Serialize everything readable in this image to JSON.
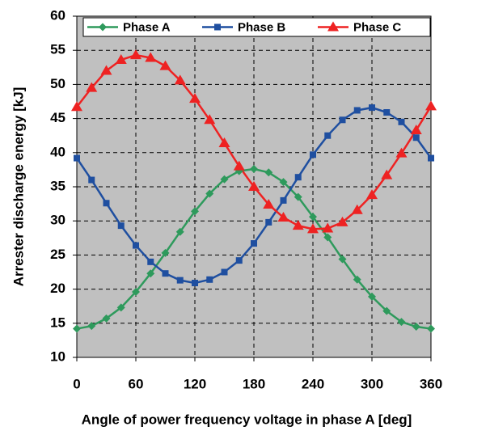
{
  "chart_data": {
    "type": "line",
    "xlabel": "Angle of power frequency voltage in phase A [deg]",
    "ylabel": "Arrester discharge energy [kJ]",
    "x": [
      0,
      15,
      30,
      45,
      60,
      75,
      90,
      105,
      120,
      135,
      150,
      165,
      180,
      195,
      210,
      225,
      240,
      255,
      270,
      285,
      300,
      315,
      330,
      345,
      360
    ],
    "series": [
      {
        "name": "Phase A",
        "color": "#2e9a5c",
        "marker": "diamond",
        "values": [
          14.2,
          14.6,
          15.7,
          17.3,
          19.6,
          22.3,
          25.3,
          28.4,
          31.4,
          34.0,
          36.1,
          37.3,
          37.6,
          37.1,
          35.7,
          33.5,
          30.6,
          27.6,
          24.4,
          21.4,
          18.9,
          16.8,
          15.2,
          14.5,
          14.2
        ]
      },
      {
        "name": "Phase B",
        "color": "#1f4fa0",
        "marker": "square",
        "values": [
          39.2,
          36.0,
          32.6,
          29.3,
          26.4,
          24.0,
          22.3,
          21.3,
          20.9,
          21.4,
          22.5,
          24.2,
          26.7,
          29.8,
          33.0,
          36.4,
          39.7,
          42.5,
          44.8,
          46.2,
          46.6,
          45.9,
          44.5,
          42.2,
          39.2
        ]
      },
      {
        "name": "Phase C",
        "color": "#ee2222",
        "marker": "triangle",
        "values": [
          46.7,
          49.5,
          52.0,
          53.6,
          54.3,
          53.9,
          52.7,
          50.6,
          47.9,
          44.8,
          41.4,
          38.0,
          35.0,
          32.4,
          30.5,
          29.3,
          28.8,
          28.9,
          29.8,
          31.6,
          33.8,
          36.7,
          39.9,
          43.3,
          46.8
        ]
      }
    ],
    "xlim": [
      0,
      360
    ],
    "xticks": [
      0,
      60,
      120,
      180,
      240,
      300,
      360
    ],
    "ylim": [
      10,
      60
    ],
    "yticks": [
      10,
      15,
      20,
      25,
      30,
      35,
      40,
      45,
      50,
      55,
      60
    ],
    "grid": true,
    "legend": "top",
    "background": "#c0c0c0"
  }
}
